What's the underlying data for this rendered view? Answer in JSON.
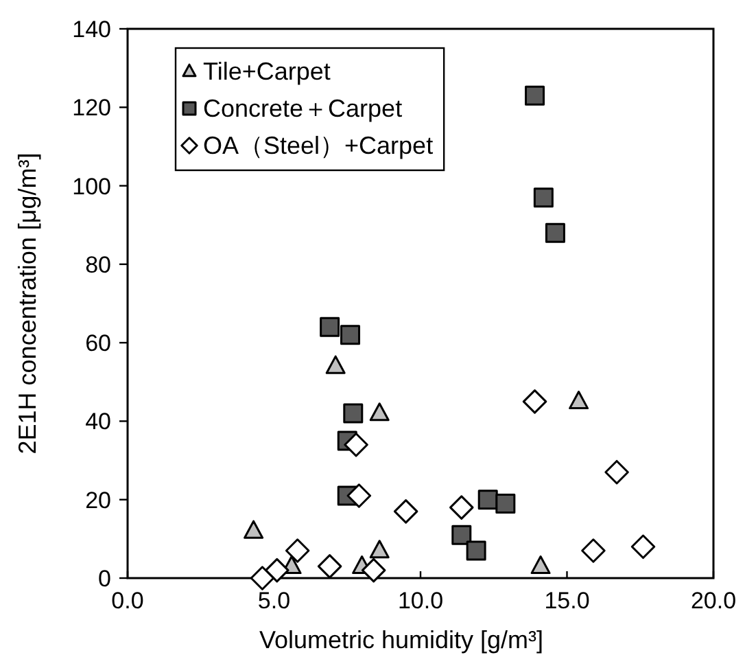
{
  "chart_data": {
    "type": "scatter",
    "xlabel": "Volumetric humidity [g/m³]",
    "ylabel": "2E1H concentration [μg/m³]",
    "xlim": [
      0,
      20
    ],
    "xticks": [
      {
        "value": 0,
        "label": "0.0"
      },
      {
        "value": 5,
        "label": "5.0"
      },
      {
        "value": 10,
        "label": "10.0"
      },
      {
        "value": 15,
        "label": "15.0"
      },
      {
        "value": 20,
        "label": "20.0"
      }
    ],
    "ylim": [
      0,
      140
    ],
    "yticks": [
      0,
      20,
      40,
      60,
      80,
      100,
      120,
      140
    ],
    "grid": false,
    "legend": "top left",
    "series": [
      {
        "name": "Tile+Carpet",
        "color": "#c0c0c0",
        "marker": "triangle",
        "x": [
          4.3,
          7.1,
          8.6,
          15.4,
          14.1,
          8.6,
          8.0,
          5.6
        ],
        "values": [
          12,
          54,
          42,
          45,
          3,
          7,
          3,
          3
        ]
      },
      {
        "name": "Concrete＋Carpet",
        "color": "#595959",
        "marker": "square",
        "x": [
          13.9,
          14.2,
          14.6,
          6.9,
          7.6,
          7.7,
          7.5,
          7.5,
          12.3,
          12.9,
          11.4,
          11.9
        ],
        "values": [
          123,
          97,
          88,
          64,
          62,
          42,
          35,
          21,
          20,
          19,
          11,
          7
        ]
      },
      {
        "name": "OA（Steel）+Carpet",
        "color": "#ffffff",
        "marker": "diamond",
        "x": [
          13.9,
          16.7,
          7.8,
          7.9,
          9.5,
          11.4,
          15.9,
          17.6,
          5.8,
          6.9,
          8.4,
          5.1,
          4.6
        ],
        "values": [
          45,
          27,
          34,
          21,
          17,
          18,
          7,
          8,
          7,
          3,
          2,
          2,
          0
        ]
      }
    ]
  }
}
